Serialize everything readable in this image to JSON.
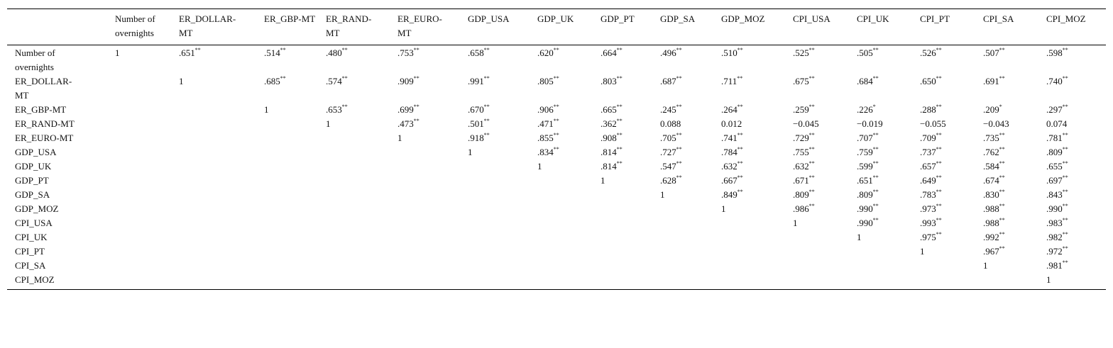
{
  "table": {
    "header": [
      "Number of overnights",
      "ER_DOLLAR-MT",
      "ER_GBP-MT",
      "ER_RAND-MT",
      "ER_EURO-MT",
      "GDP_USA",
      "GDP_UK",
      "GDP_PT",
      "GDP_SA",
      "GDP_MOZ",
      "CPI_USA",
      "CPI_UK",
      "CPI_PT",
      "CPI_SA",
      "CPI_MOZ"
    ],
    "rows": [
      {
        "label": "Number of overnights",
        "cells": [
          "1",
          {
            "text": ".651",
            "sup": "**"
          },
          {
            "text": ".514",
            "sup": "**"
          },
          {
            "text": ".480",
            "sup": "**"
          },
          {
            "text": ".753",
            "sup": "**"
          },
          {
            "text": ".658",
            "sup": "**"
          },
          {
            "text": ".620",
            "sup": "**"
          },
          {
            "text": ".664",
            "sup": "**"
          },
          {
            "text": ".496",
            "sup": "**"
          },
          {
            "text": ".510",
            "sup": "**"
          },
          {
            "text": ".525",
            "sup": "**"
          },
          {
            "text": ".505",
            "sup": "**"
          },
          {
            "text": ".526",
            "sup": "**"
          },
          {
            "text": ".507",
            "sup": "**"
          },
          {
            "text": ".598",
            "sup": "**"
          }
        ]
      },
      {
        "label": "ER_DOLLAR-MT",
        "cells": [
          "1",
          {
            "text": ".685",
            "sup": "**"
          },
          {
            "text": ".574",
            "sup": "**"
          },
          {
            "text": ".909",
            "sup": "**"
          },
          {
            "text": ".991",
            "sup": "**"
          },
          {
            "text": ".805",
            "sup": "**"
          },
          {
            "text": ".803",
            "sup": "**"
          },
          {
            "text": ".687",
            "sup": "**"
          },
          {
            "text": ".711",
            "sup": "**"
          },
          {
            "text": ".675",
            "sup": "**"
          },
          {
            "text": ".684",
            "sup": "**"
          },
          {
            "text": ".650",
            "sup": "**"
          },
          {
            "text": ".691",
            "sup": "**"
          },
          {
            "text": ".740",
            "sup": "**"
          }
        ]
      },
      {
        "label": "ER_GBP-MT",
        "cells": [
          "1",
          {
            "text": ".653",
            "sup": "**"
          },
          {
            "text": ".699",
            "sup": "**"
          },
          {
            "text": ".670",
            "sup": "**"
          },
          {
            "text": ".906",
            "sup": "**"
          },
          {
            "text": ".665",
            "sup": "**"
          },
          {
            "text": ".245",
            "sup": "**"
          },
          {
            "text": ".264",
            "sup": "**"
          },
          {
            "text": ".259",
            "sup": "**"
          },
          {
            "text": ".226",
            "sup": "*"
          },
          {
            "text": ".288",
            "sup": "**"
          },
          {
            "text": ".209",
            "sup": "*"
          },
          {
            "text": ".297",
            "sup": "**"
          }
        ]
      },
      {
        "label": "ER_RAND-MT",
        "cells": [
          "1",
          {
            "text": ".473",
            "sup": "**"
          },
          {
            "text": ".501",
            "sup": "**"
          },
          {
            "text": ".471",
            "sup": "**"
          },
          {
            "text": ".362",
            "sup": "**"
          },
          "0.088",
          "0.012",
          "−0.045",
          "−0.019",
          "−0.055",
          "−0.043",
          "0.074"
        ]
      },
      {
        "label": "ER_EURO-MT",
        "cells": [
          "1",
          {
            "text": ".918",
            "sup": "**"
          },
          {
            "text": ".855",
            "sup": "**"
          },
          {
            "text": ".908",
            "sup": "**"
          },
          {
            "text": ".705",
            "sup": "**"
          },
          {
            "text": ".741",
            "sup": "**"
          },
          {
            "text": ".729",
            "sup": "**"
          },
          {
            "text": ".707",
            "sup": "**"
          },
          {
            "text": ".709",
            "sup": "**"
          },
          {
            "text": ".735",
            "sup": "**"
          },
          {
            "text": ".781",
            "sup": "**"
          }
        ]
      },
      {
        "label": "GDP_USA",
        "cells": [
          "1",
          {
            "text": ".834",
            "sup": "**"
          },
          {
            "text": ".814",
            "sup": "**"
          },
          {
            "text": ".727",
            "sup": "**"
          },
          {
            "text": ".784",
            "sup": "**"
          },
          {
            "text": ".755",
            "sup": "**"
          },
          {
            "text": ".759",
            "sup": "**"
          },
          {
            "text": ".737",
            "sup": "**"
          },
          {
            "text": ".762",
            "sup": "**"
          },
          {
            "text": ".809",
            "sup": "**"
          }
        ]
      },
      {
        "label": "GDP_UK",
        "cells": [
          "1",
          {
            "text": ".814",
            "sup": "**"
          },
          {
            "text": ".547",
            "sup": "**"
          },
          {
            "text": ".632",
            "sup": "**"
          },
          {
            "text": ".632",
            "sup": "**"
          },
          {
            "text": ".599",
            "sup": "**"
          },
          {
            "text": ".657",
            "sup": "**"
          },
          {
            "text": ".584",
            "sup": "**"
          },
          {
            "text": ".655",
            "sup": "**"
          }
        ]
      },
      {
        "label": "GDP_PT",
        "cells": [
          "1",
          {
            "text": ".628",
            "sup": "**"
          },
          {
            "text": ".667",
            "sup": "**"
          },
          {
            "text": ".671",
            "sup": "**"
          },
          {
            "text": ".651",
            "sup": "**"
          },
          {
            "text": ".649",
            "sup": "**"
          },
          {
            "text": ".674",
            "sup": "**"
          },
          {
            "text": ".697",
            "sup": "**"
          }
        ]
      },
      {
        "label": "GDP_SA",
        "cells": [
          "1",
          {
            "text": ".849",
            "sup": "**"
          },
          {
            "text": ".809",
            "sup": "**"
          },
          {
            "text": ".809",
            "sup": "**"
          },
          {
            "text": ".783",
            "sup": "**"
          },
          {
            "text": ".830",
            "sup": "**"
          },
          {
            "text": ".843",
            "sup": "**"
          }
        ]
      },
      {
        "label": "GDP_MOZ",
        "cells": [
          "1",
          {
            "text": ".986",
            "sup": "**"
          },
          {
            "text": ".990",
            "sup": "**"
          },
          {
            "text": ".973",
            "sup": "**"
          },
          {
            "text": ".988",
            "sup": "**"
          },
          {
            "text": ".990",
            "sup": "**"
          }
        ]
      },
      {
        "label": "CPI_USA",
        "cells": [
          "1",
          {
            "text": ".990",
            "sup": "**"
          },
          {
            "text": ".993",
            "sup": "**"
          },
          {
            "text": ".988",
            "sup": "**"
          },
          {
            "text": ".983",
            "sup": "**"
          }
        ]
      },
      {
        "label": "CPI_UK",
        "cells": [
          "1",
          {
            "text": ".975",
            "sup": "**"
          },
          {
            "text": ".992",
            "sup": "**"
          },
          {
            "text": ".982",
            "sup": "**"
          }
        ]
      },
      {
        "label": "CPI_PT",
        "cells": [
          "1",
          {
            "text": ".967",
            "sup": "**"
          },
          {
            "text": ".972",
            "sup": "**"
          }
        ]
      },
      {
        "label": "CPI_SA",
        "cells": [
          "1",
          {
            "text": ".981",
            "sup": "**"
          }
        ]
      },
      {
        "label": "CPI_MOZ",
        "cells": [
          "1"
        ]
      }
    ]
  }
}
